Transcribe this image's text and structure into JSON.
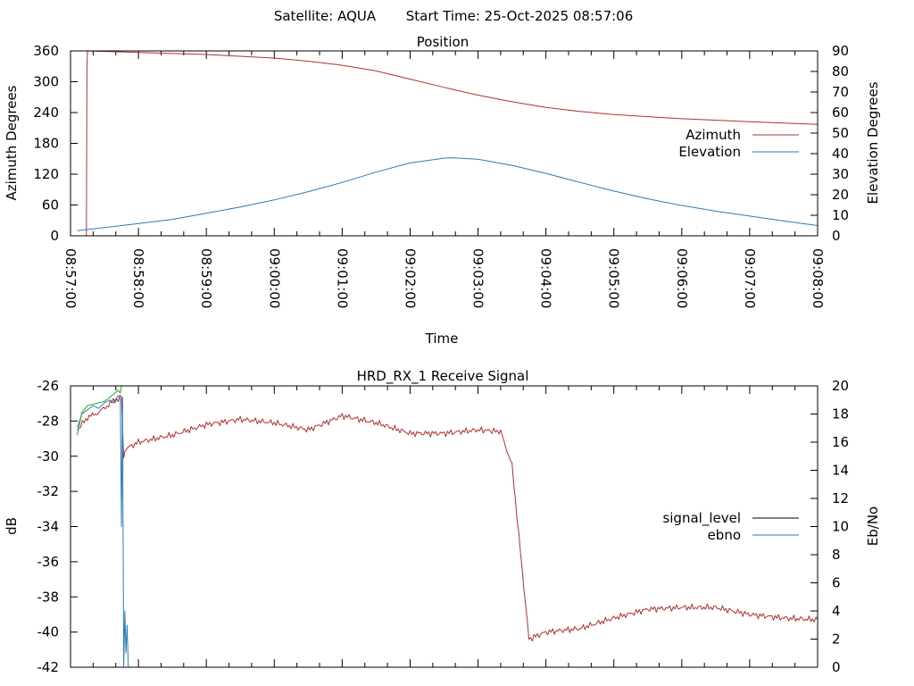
{
  "header": {
    "satellite_label": "Satellite: AQUA",
    "start_time_label": "Start Time: 25-Oct-2025 08:57:06"
  },
  "chart_data": [
    {
      "type": "line",
      "title": "Position",
      "xlabel": "Time",
      "ylabel": "Azimuth Degrees",
      "y2label": "Elevation Degrees",
      "xlim": [
        "08:57:00",
        "09:08:00"
      ],
      "ylim": [
        0,
        360
      ],
      "y2lim": [
        0,
        90
      ],
      "x_tick_labels": [
        "08:57:00",
        "08:58:00",
        "08:59:00",
        "09:00:00",
        "09:01:00",
        "09:02:00",
        "09:03:00",
        "09:04:00",
        "09:05:00",
        "09:06:00",
        "09:07:00",
        "09:08:00"
      ],
      "y_tick_labels": [
        "0",
        "60",
        "120",
        "180",
        "240",
        "300",
        "360"
      ],
      "y2_tick_labels": [
        "0",
        "10",
        "20",
        "30",
        "40",
        "50",
        "60",
        "70",
        "80",
        "90"
      ],
      "legend": "right",
      "series": [
        {
          "name": "Azimuth",
          "axis": "left",
          "color": "#b03030",
          "x": [
            "08:57:14",
            "08:57:14.5",
            "08:57:15",
            "08:58:00",
            "08:59:00",
            "09:00:00",
            "09:00:30",
            "09:01:00",
            "09:01:30",
            "09:02:00",
            "09:02:30",
            "09:03:00",
            "09:03:30",
            "09:04:00",
            "09:04:30",
            "09:05:00",
            "09:06:00",
            "09:07:00",
            "09:08:00"
          ],
          "y": [
            0,
            330,
            360,
            357,
            353,
            346,
            340,
            332,
            321,
            305,
            289,
            274,
            261,
            250,
            242,
            236,
            228,
            222,
            217
          ]
        },
        {
          "name": "Elevation",
          "axis": "right",
          "color": "#2b7bb9",
          "x": [
            "08:57:06",
            "08:57:30",
            "08:58:00",
            "08:58:30",
            "08:59:00",
            "08:59:30",
            "09:00:00",
            "09:00:30",
            "09:01:00",
            "09:01:30",
            "09:02:00",
            "09:02:30",
            "09:02:36",
            "09:03:00",
            "09:03:30",
            "09:04:00",
            "09:04:30",
            "09:05:00",
            "09:05:30",
            "09:06:00",
            "09:06:30",
            "09:07:00",
            "09:07:30",
            "09:08:00"
          ],
          "y": [
            2.5,
            4,
            6,
            8,
            11,
            14,
            17.5,
            21.5,
            26,
            31,
            35.5,
            37.8,
            38,
            37.3,
            34.3,
            30.4,
            26,
            21.8,
            18,
            14.8,
            12,
            9.6,
            7.2,
            5
          ]
        }
      ]
    },
    {
      "type": "line",
      "title": "HRD_RX_1 Receive Signal",
      "xlabel": "",
      "ylabel": "dB",
      "y2label": "Eb/No",
      "xlim": [
        "08:57:00",
        "09:08:00"
      ],
      "ylim": [
        -42,
        -26
      ],
      "y2lim": [
        0,
        20
      ],
      "y_tick_labels": [
        "-42",
        "-40",
        "-38",
        "-36",
        "-34",
        "-32",
        "-30",
        "-28",
        "-26"
      ],
      "y2_tick_labels": [
        "0",
        "2",
        "4",
        "6",
        "8",
        "10",
        "12",
        "14",
        "16",
        "18",
        "20"
      ],
      "legend": "right",
      "series": [
        {
          "name": "signal_level",
          "axis": "left",
          "color": "#b03030",
          "x": [
            "08:57:06",
            "08:57:15",
            "08:57:25",
            "08:57:35",
            "08:57:45",
            "08:57:47",
            "08:57:48",
            "08:58:00",
            "08:58:30",
            "08:59:00",
            "08:59:30",
            "09:00:00",
            "09:00:30",
            "09:01:00",
            "09:01:30",
            "09:02:00",
            "09:02:30",
            "09:03:00",
            "09:03:20",
            "09:03:30",
            "09:03:45",
            "09:04:00",
            "09:04:30",
            "09:05:00",
            "09:05:30",
            "09:06:00",
            "09:06:30",
            "09:07:00",
            "09:07:30",
            "09:08:00"
          ],
          "y": [
            -28.5,
            -27.8,
            -27.5,
            -27.0,
            -26.6,
            -30.0,
            -29.6,
            -29.2,
            -28.8,
            -28.2,
            -27.9,
            -28.1,
            -28.5,
            -27.7,
            -28.1,
            -28.7,
            -28.7,
            -28.5,
            -28.6,
            -30.5,
            -40.4,
            -40.0,
            -39.8,
            -39.2,
            -38.7,
            -38.6,
            -38.6,
            -39.0,
            -39.2,
            -39.3
          ]
        },
        {
          "name": "ebno",
          "axis": "right",
          "color": "#2b7bb9",
          "x": [
            "08:57:06",
            "08:57:10",
            "08:57:15",
            "08:57:20",
            "08:57:25",
            "08:57:30",
            "08:57:35",
            "08:57:38",
            "08:57:42",
            "08:57:44",
            "08:57:45",
            "08:57:46",
            "08:57:47",
            "08:57:48",
            "08:57:49",
            "08:57:50",
            "08:57:51"
          ],
          "y": [
            17,
            18,
            18.3,
            18.6,
            18.4,
            18.8,
            19.0,
            18.8,
            19.3,
            19.1,
            10,
            19.2,
            0,
            4,
            1,
            3,
            0
          ]
        },
        {
          "name": "",
          "axis": "right",
          "color": "#22aa22",
          "x": [
            "08:57:06",
            "08:57:10",
            "08:57:15",
            "08:57:20",
            "08:57:25",
            "08:57:30",
            "08:57:35",
            "08:57:38",
            "08:57:42",
            "08:57:44",
            "08:57:45"
          ],
          "y": [
            16.5,
            18.1,
            18.6,
            18.7,
            18.8,
            18.9,
            19.2,
            19.4,
            19.7,
            19.5,
            20.0
          ]
        }
      ]
    }
  ]
}
